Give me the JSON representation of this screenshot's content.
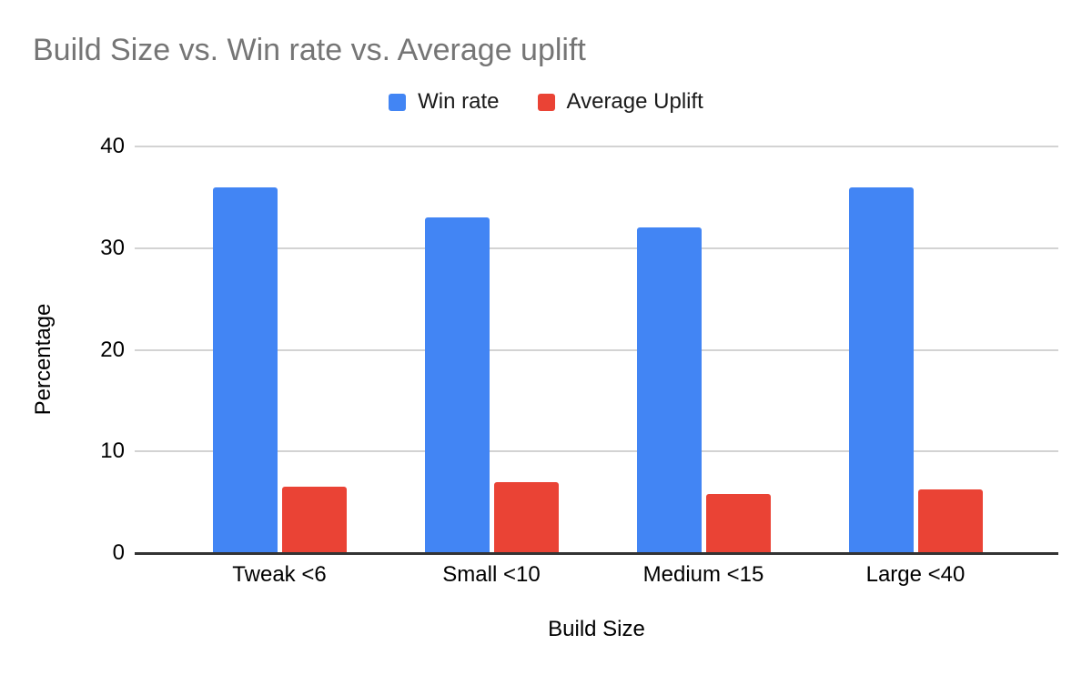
{
  "title": "Build Size vs. Win rate vs. Average uplift",
  "chart_data": {
    "type": "bar",
    "title": "Build Size vs. Win rate vs. Average uplift",
    "categories": [
      "Tweak <6",
      "Small <10",
      "Medium <15",
      "Large <40"
    ],
    "series": [
      {
        "name": "Win rate",
        "color": "#4285F4",
        "values": [
          36,
          33,
          32,
          36
        ]
      },
      {
        "name": "Average Uplift",
        "color": "#EA4335",
        "values": [
          6.5,
          7,
          5.8,
          6.3
        ]
      }
    ],
    "xlabel": "Build Size",
    "ylabel": "Percentage",
    "ylim": [
      0,
      40
    ],
    "yticks": [
      0,
      10,
      20,
      30,
      40
    ],
    "grid": "horizontal",
    "legend_position": "top"
  },
  "theme": {
    "background": "#ffffff",
    "title_color": "#757575",
    "text_color": "#000000",
    "gridline_color": "#d3d3d3",
    "axis_line_color": "#333333"
  }
}
